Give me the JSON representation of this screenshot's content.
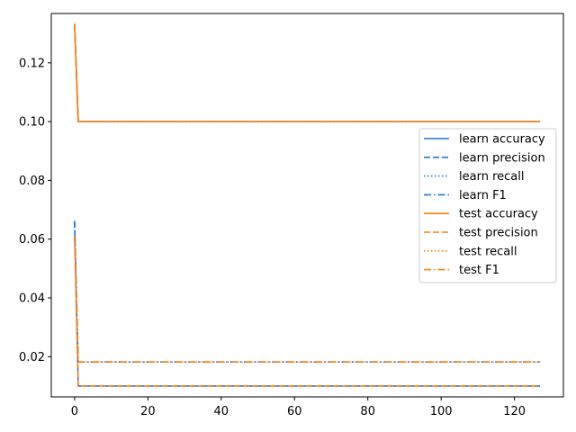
{
  "chart_data": {
    "type": "line",
    "title": "",
    "xlabel": "",
    "ylabel": "",
    "xlim": [
      -6.35,
      133.35
    ],
    "ylim": [
      0.0063,
      0.1368
    ],
    "x_ticks": [
      0,
      20,
      40,
      60,
      80,
      100,
      120
    ],
    "y_ticks": [
      0.02,
      0.04,
      0.06,
      0.08,
      0.1,
      0.12
    ],
    "grid": false,
    "legend_position": "center-right",
    "x": {
      "start": 0,
      "end": 127
    },
    "series": [
      {
        "name": "learn accuracy",
        "color": "#1f77d4",
        "style": "solid",
        "values": [
          0.1333,
          0.1,
          0.1
        ],
        "x": [
          0,
          1,
          127
        ]
      },
      {
        "name": "learn precision",
        "color": "#1f77d4",
        "style": "dashed",
        "values": [
          0.0662,
          0.01,
          0.01
        ],
        "x": [
          0,
          1,
          127
        ]
      },
      {
        "name": "learn recall",
        "color": "#1f77d4",
        "style": "dotted",
        "values": [
          0.1333,
          0.1,
          0.1
        ],
        "x": [
          0,
          1,
          127
        ]
      },
      {
        "name": "learn F1",
        "color": "#1f77d4",
        "style": "dashdot",
        "values": [
          0.0662,
          0.0182,
          0.0182
        ],
        "x": [
          0,
          1,
          127
        ]
      },
      {
        "name": "test accuracy",
        "color": "#ff7f0e",
        "style": "solid",
        "values": [
          0.1333,
          0.1,
          0.1
        ],
        "x": [
          0,
          1,
          127
        ]
      },
      {
        "name": "test precision",
        "color": "#ff7f0e",
        "style": "dashed",
        "values": [
          0.061,
          0.01,
          0.01
        ],
        "x": [
          0,
          1,
          127
        ]
      },
      {
        "name": "test recall",
        "color": "#ff7f0e",
        "style": "dotted",
        "values": [
          0.1333,
          0.1,
          0.1
        ],
        "x": [
          0,
          1,
          127
        ]
      },
      {
        "name": "test F1",
        "color": "#ff7f0e",
        "style": "dashdot",
        "values": [
          0.061,
          0.0182,
          0.0182
        ],
        "x": [
          0,
          1,
          127
        ]
      }
    ]
  }
}
